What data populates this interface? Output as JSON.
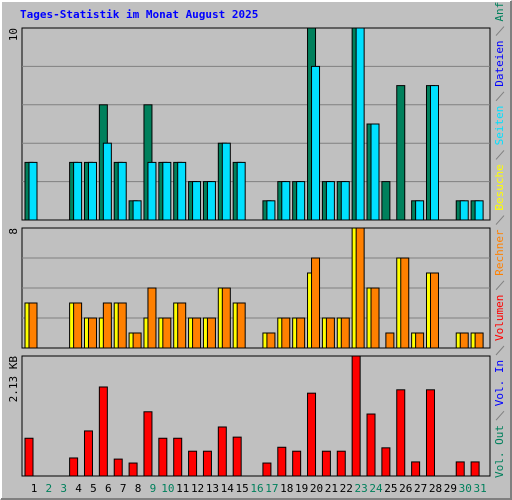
{
  "chart_data": [
    {
      "type": "bar",
      "title": "Tages-Statistik im Monat August 2025",
      "ylim": [
        0,
        10
      ],
      "yticks": [
        10
      ],
      "series": [
        {
          "name": "Anfragen",
          "color": "#00805c",
          "values": [
            3,
            0,
            0,
            3,
            3,
            6,
            3,
            1,
            6,
            3,
            3,
            2,
            2,
            4,
            3,
            0,
            1,
            2,
            2,
            10,
            2,
            2,
            10,
            5,
            2,
            7,
            1,
            7,
            0,
            1,
            1
          ]
        },
        {
          "name": "Dateien",
          "color": "#0000ff",
          "values": [
            0,
            0,
            0,
            0,
            0,
            0,
            0,
            0,
            0,
            0,
            0,
            0,
            0,
            0,
            0,
            0,
            0,
            0,
            0,
            0,
            0,
            0,
            0,
            0,
            0,
            0,
            0,
            0,
            0,
            0,
            0
          ]
        },
        {
          "name": "Seiten",
          "color": "#00e0ff",
          "values": [
            3,
            0,
            0,
            3,
            3,
            4,
            3,
            1,
            3,
            3,
            3,
            2,
            2,
            4,
            3,
            0,
            1,
            2,
            2,
            8,
            2,
            2,
            10,
            5,
            0,
            0,
            1,
            7,
            0,
            1,
            1
          ]
        }
      ]
    },
    {
      "type": "bar",
      "ylim": [
        0,
        8
      ],
      "yticks": [
        8
      ],
      "series": [
        {
          "name": "Besuche",
          "color": "#ffff00",
          "values": [
            3,
            0,
            0,
            3,
            2,
            2,
            3,
            1,
            2,
            2,
            3,
            2,
            2,
            4,
            3,
            0,
            1,
            2,
            2,
            5,
            2,
            2,
            8,
            4,
            0,
            6,
            1,
            5,
            0,
            1,
            1
          ]
        },
        {
          "name": "Rechner",
          "color": "#ff8000",
          "values": [
            3,
            0,
            0,
            3,
            2,
            3,
            3,
            1,
            4,
            2,
            3,
            2,
            2,
            4,
            3,
            0,
            1,
            2,
            2,
            6,
            2,
            2,
            8,
            4,
            1,
            6,
            1,
            5,
            0,
            1,
            1
          ]
        }
      ]
    },
    {
      "type": "bar",
      "ylim": [
        0,
        2.13
      ],
      "yticks": [
        {
          "value": 2.13,
          "label": "2.13 KB"
        }
      ],
      "categories": [
        "1",
        "2",
        "3",
        "4",
        "5",
        "6",
        "7",
        "8",
        "9",
        "10",
        "11",
        "12",
        "13",
        "14",
        "15",
        "16",
        "17",
        "18",
        "19",
        "20",
        "21",
        "22",
        "23",
        "24",
        "25",
        "26",
        "27",
        "28",
        "29",
        "30",
        "31"
      ],
      "category_colors": [
        "#000000",
        "#00805c",
        "#00805c",
        "#000000",
        "#000000",
        "#000000",
        "#000000",
        "#000000",
        "#00805c",
        "#00805c",
        "#000000",
        "#000000",
        "#000000",
        "#000000",
        "#000000",
        "#00805c",
        "#00805c",
        "#000000",
        "#000000",
        "#000000",
        "#000000",
        "#000000",
        "#00805c",
        "#00805c",
        "#000000",
        "#000000",
        "#000000",
        "#000000",
        "#000000",
        "#00805c",
        "#00805c"
      ],
      "series": [
        {
          "name": "Volumen",
          "color": "#ff0000",
          "values": [
            0.67,
            0,
            0,
            0.32,
            0.8,
            1.58,
            0.3,
            0.23,
            1.14,
            0.67,
            0.67,
            0.44,
            0.44,
            0.87,
            0.69,
            0,
            0.23,
            0.51,
            0.44,
            1.47,
            0.44,
            0.44,
            2.13,
            1.1,
            0.5,
            1.53,
            0.25,
            1.53,
            0,
            0.25,
            0.25
          ]
        },
        {
          "name": "Vol. In",
          "color": "#0000ff",
          "values": [
            0,
            0,
            0,
            0,
            0,
            0,
            0,
            0,
            0,
            0,
            0,
            0,
            0,
            0,
            0,
            0,
            0,
            0,
            0,
            0,
            0,
            0,
            0,
            0,
            0,
            0,
            0,
            0,
            0,
            0,
            0
          ]
        },
        {
          "name": "Vol. Out",
          "color": "#00805c",
          "values": [
            0,
            0,
            0,
            0,
            0,
            0,
            0,
            0,
            0,
            0,
            0,
            0,
            0,
            0,
            0,
            0,
            0,
            0,
            0,
            0,
            0,
            0,
            0,
            0,
            0,
            0,
            0,
            0,
            0,
            0,
            0
          ]
        }
      ]
    }
  ]
}
